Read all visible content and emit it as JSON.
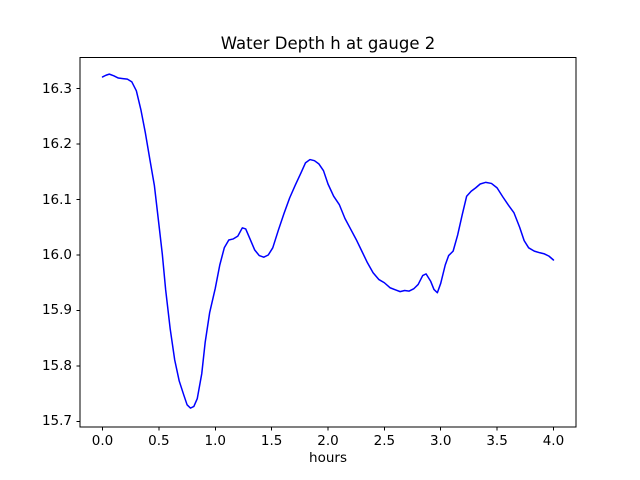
{
  "chart_data": {
    "type": "line",
    "title": "Water Depth h at gauge 2",
    "xlabel": "hours",
    "ylabel": "",
    "xlim": [
      -0.2,
      4.2
    ],
    "ylim": [
      15.69,
      16.356
    ],
    "grid": false,
    "legend": "none",
    "x_ticks": {
      "values": [
        0.0,
        0.5,
        1.0,
        1.5,
        2.0,
        2.5,
        3.0,
        3.5,
        4.0
      ],
      "labels": [
        "0.0",
        "0.5",
        "1.0",
        "1.5",
        "2.0",
        "2.5",
        "3.0",
        "3.5",
        "4.0"
      ]
    },
    "y_ticks": {
      "values": [
        15.7,
        15.8,
        15.9,
        16.0,
        16.1,
        16.2,
        16.3
      ],
      "labels": [
        "15.7",
        "15.8",
        "15.9",
        "16.0",
        "16.1",
        "16.2",
        "16.3"
      ]
    },
    "series": [
      {
        "color": "#0000ff",
        "line_width": 1.5,
        "points": [
          [
            0.0,
            16.321
          ],
          [
            0.03,
            16.324
          ],
          [
            0.06,
            16.326
          ],
          [
            0.1,
            16.323
          ],
          [
            0.14,
            16.319
          ],
          [
            0.18,
            16.318
          ],
          [
            0.22,
            16.317
          ],
          [
            0.26,
            16.312
          ],
          [
            0.3,
            16.296
          ],
          [
            0.34,
            16.262
          ],
          [
            0.38,
            16.22
          ],
          [
            0.42,
            16.172
          ],
          [
            0.46,
            16.125
          ],
          [
            0.5,
            16.055
          ],
          [
            0.53,
            16.002
          ],
          [
            0.56,
            15.937
          ],
          [
            0.6,
            15.867
          ],
          [
            0.64,
            15.811
          ],
          [
            0.68,
            15.773
          ],
          [
            0.72,
            15.748
          ],
          [
            0.75,
            15.73
          ],
          [
            0.78,
            15.724
          ],
          [
            0.81,
            15.727
          ],
          [
            0.84,
            15.741
          ],
          [
            0.88,
            15.786
          ],
          [
            0.91,
            15.842
          ],
          [
            0.95,
            15.896
          ],
          [
            1.0,
            15.94
          ],
          [
            1.04,
            15.982
          ],
          [
            1.08,
            16.013
          ],
          [
            1.12,
            16.027
          ],
          [
            1.16,
            16.029
          ],
          [
            1.2,
            16.034
          ],
          [
            1.24,
            16.049
          ],
          [
            1.27,
            16.047
          ],
          [
            1.31,
            16.028
          ],
          [
            1.35,
            16.009
          ],
          [
            1.39,
            15.999
          ],
          [
            1.43,
            15.996
          ],
          [
            1.47,
            16.0
          ],
          [
            1.51,
            16.013
          ],
          [
            1.56,
            16.045
          ],
          [
            1.61,
            16.075
          ],
          [
            1.66,
            16.103
          ],
          [
            1.71,
            16.126
          ],
          [
            1.76,
            16.148
          ],
          [
            1.8,
            16.166
          ],
          [
            1.84,
            16.172
          ],
          [
            1.88,
            16.17
          ],
          [
            1.92,
            16.164
          ],
          [
            1.96,
            16.152
          ],
          [
            2.0,
            16.128
          ],
          [
            2.05,
            16.106
          ],
          [
            2.1,
            16.091
          ],
          [
            2.15,
            16.066
          ],
          [
            2.2,
            16.047
          ],
          [
            2.25,
            16.028
          ],
          [
            2.3,
            16.007
          ],
          [
            2.35,
            15.986
          ],
          [
            2.4,
            15.968
          ],
          [
            2.45,
            15.956
          ],
          [
            2.5,
            15.95
          ],
          [
            2.55,
            15.941
          ],
          [
            2.6,
            15.937
          ],
          [
            2.64,
            15.934
          ],
          [
            2.68,
            15.936
          ],
          [
            2.72,
            15.935
          ],
          [
            2.76,
            15.939
          ],
          [
            2.8,
            15.947
          ],
          [
            2.84,
            15.963
          ],
          [
            2.87,
            15.966
          ],
          [
            2.91,
            15.953
          ],
          [
            2.94,
            15.938
          ],
          [
            2.97,
            15.932
          ],
          [
            3.0,
            15.949
          ],
          [
            3.04,
            15.982
          ],
          [
            3.07,
            15.999
          ],
          [
            3.11,
            16.007
          ],
          [
            3.15,
            16.036
          ],
          [
            3.19,
            16.072
          ],
          [
            3.23,
            16.106
          ],
          [
            3.27,
            16.115
          ],
          [
            3.31,
            16.121
          ],
          [
            3.35,
            16.128
          ],
          [
            3.4,
            16.131
          ],
          [
            3.45,
            16.129
          ],
          [
            3.5,
            16.121
          ],
          [
            3.55,
            16.105
          ],
          [
            3.6,
            16.09
          ],
          [
            3.65,
            16.076
          ],
          [
            3.7,
            16.05
          ],
          [
            3.74,
            16.026
          ],
          [
            3.78,
            16.013
          ],
          [
            3.83,
            16.007
          ],
          [
            3.88,
            16.004
          ],
          [
            3.92,
            16.002
          ],
          [
            3.96,
            15.998
          ],
          [
            4.0,
            15.991
          ]
        ]
      }
    ]
  },
  "colors": {
    "line": "#0000ff",
    "text": "#000000",
    "spine": "#000000",
    "background": "#ffffff"
  }
}
